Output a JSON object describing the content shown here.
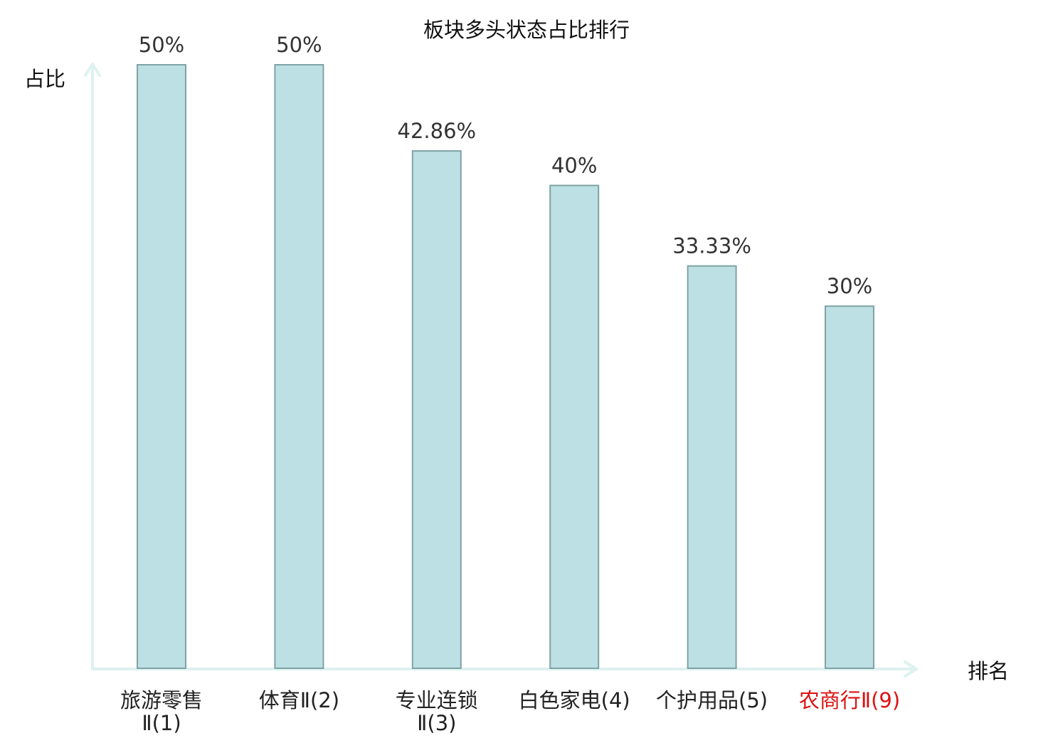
{
  "chart_data": {
    "type": "bar",
    "title": "板块多头状态占比排行",
    "ylabel": "占比",
    "xlabel": "排名",
    "categories": [
      "旅游零售Ⅱ(1)",
      "体育Ⅱ(2)",
      "专业连锁Ⅱ(3)",
      "白色家电(4)",
      "个护用品(5)",
      "农商行Ⅱ(9)"
    ],
    "category_lines": [
      [
        "旅游零售",
        "Ⅱ(1)"
      ],
      [
        "体育Ⅱ(2)"
      ],
      [
        "专业连锁",
        "Ⅱ(3)"
      ],
      [
        "白色家电(4)"
      ],
      [
        "个护用品(5)"
      ],
      [
        "农商行Ⅱ(9)"
      ]
    ],
    "category_colors": [
      "#222222",
      "#222222",
      "#222222",
      "#222222",
      "#222222",
      "#dd1111"
    ],
    "values": [
      50,
      50,
      42.86,
      40,
      33.33,
      30
    ],
    "value_labels": [
      "50%",
      "50%",
      "42.86%",
      "40%",
      "33.33%",
      "30%"
    ],
    "ylim": [
      0,
      50
    ],
    "grid": false,
    "colors": {
      "bar_fill": "#bce0e3",
      "bar_stroke": "#7fa3a6",
      "axis": "#def2f0",
      "label": "#333333",
      "title": "#111111"
    }
  }
}
